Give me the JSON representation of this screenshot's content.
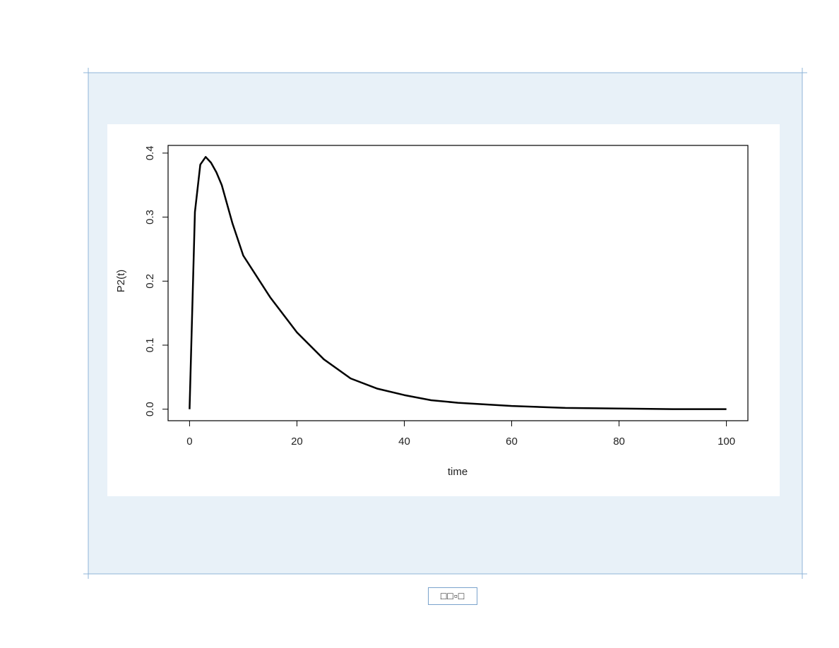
{
  "chart_data": {
    "type": "line",
    "x_label": "time",
    "y_label": "P2(t)",
    "x": [
      0,
      1,
      2,
      3,
      4,
      5,
      6,
      8,
      10,
      15,
      20,
      25,
      30,
      35,
      40,
      45,
      50,
      60,
      70,
      80,
      90,
      100
    ],
    "series": [
      {
        "name": "P2(t)",
        "color": "#000000",
        "values": [
          0,
          0.308,
          0.382,
          0.394,
          0.385,
          0.37,
          0.35,
          0.29,
          0.24,
          0.175,
          0.12,
          0.078,
          0.048,
          0.032,
          0.022,
          0.014,
          0.01,
          0.005,
          0.002,
          0.001,
          0,
          0
        ]
      }
    ],
    "xlim": [
      -4,
      104
    ],
    "ylim": [
      -0.018,
      0.412
    ],
    "xticks": [
      0,
      20,
      40,
      60,
      80,
      100
    ],
    "yticks": [
      {
        "value": 0,
        "label": "0.0"
      },
      0.1,
      0.2,
      0.3,
      0.4
    ]
  },
  "footer": {
    "label": "□□▫□"
  }
}
